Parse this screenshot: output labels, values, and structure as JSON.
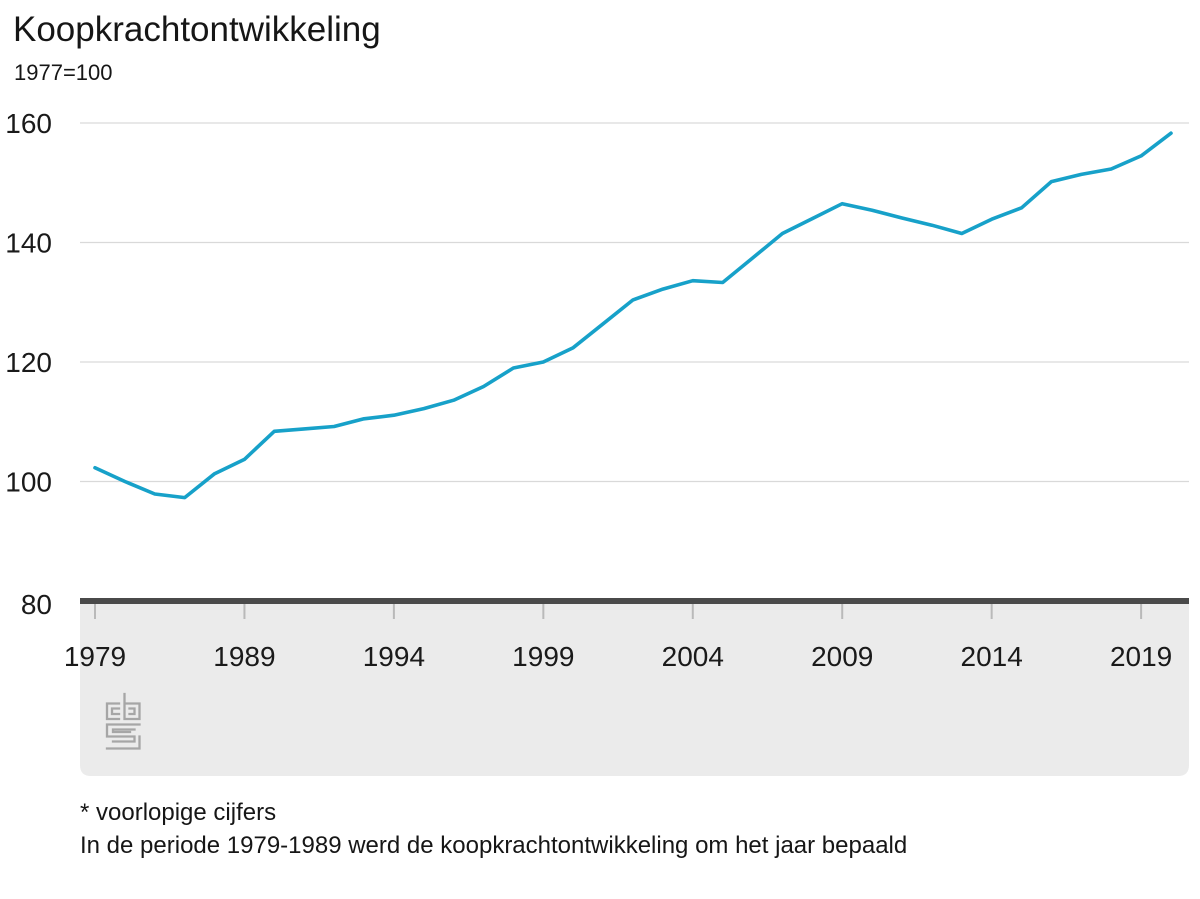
{
  "header": {
    "title": "Koopkrachtontwikkeling",
    "unit": "1977=100"
  },
  "colors": {
    "series_line": "#17a1c9",
    "axis_bar": "#4a4a4a",
    "footer_band": "#ebebeb",
    "gridline": "#d9d9d9",
    "tick": "#b9b9b9",
    "text": "#1a1a1a",
    "logo": "#a6a6a6"
  },
  "logo": {
    "icon": "cbs-logo"
  },
  "footnotes": [
    "* voorlopige cijfers",
    "In de periode 1979-1989 werd de koopkrachtontwikkeling om het jaar bepaald"
  ],
  "chart_data": {
    "type": "line",
    "title": "Koopkrachtontwikkeling",
    "subtitle": "1977=100",
    "xlabel": "",
    "ylabel": "",
    "ylim": [
      80,
      160
    ],
    "yticks": [
      160,
      140,
      120,
      100,
      80
    ],
    "xticks": [
      1979,
      1989,
      1994,
      1999,
      2004,
      2009,
      2014,
      2019
    ],
    "grid": "horizontal",
    "legend": "none",
    "x": [
      1979,
      1981,
      1983,
      1985,
      1987,
      1989,
      1990,
      1991,
      1992,
      1993,
      1994,
      1995,
      1996,
      1997,
      1998,
      1999,
      2000,
      2001,
      2002,
      2003,
      2004,
      2005,
      2006,
      2007,
      2008,
      2009,
      2010,
      2011,
      2012,
      2013,
      2014,
      2015,
      2016,
      2017,
      2018,
      2019,
      2020
    ],
    "values": [
      102.3,
      100.0,
      97.9,
      97.3,
      101.3,
      103.7,
      108.4,
      108.8,
      109.2,
      110.5,
      111.1,
      112.2,
      113.6,
      115.9,
      119.0,
      120.0,
      122.4,
      126.4,
      130.4,
      132.2,
      133.6,
      133.3,
      137.4,
      141.5,
      144.0,
      146.5,
      145.4,
      144.1,
      142.9,
      141.5,
      143.9,
      145.8,
      150.2,
      151.4,
      152.3,
      154.5,
      158.3
    ],
    "series": [
      {
        "name": "Koopkrachtontwikkeling (1977=100)",
        "values_ref": "values"
      }
    ]
  }
}
